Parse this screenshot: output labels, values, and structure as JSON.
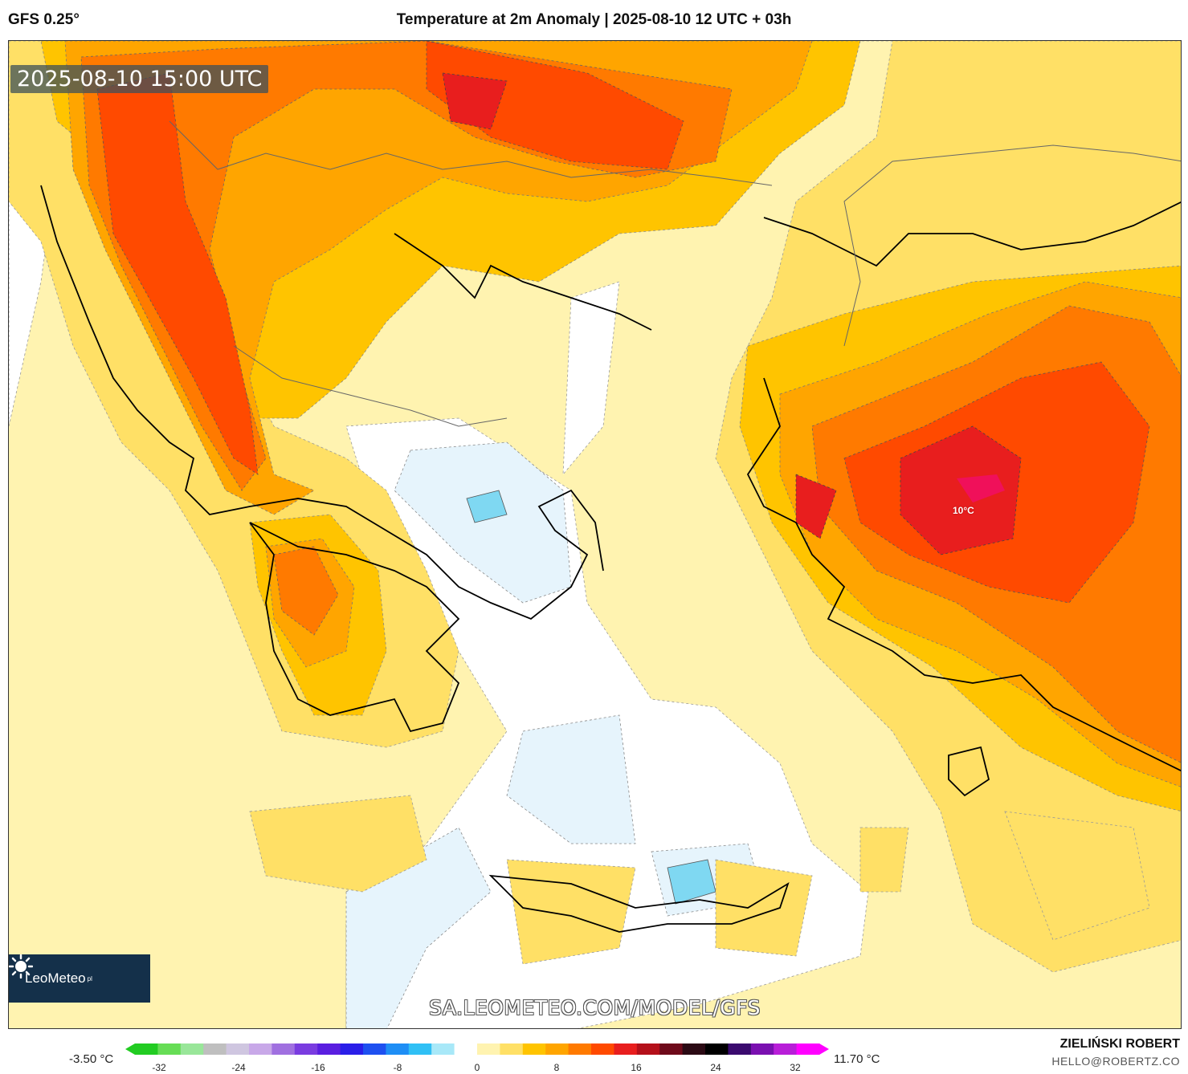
{
  "header": {
    "model": "GFS 0.25°",
    "title": "Temperature at 2m Anomaly | 2025-08-10 12 UTC + 03h"
  },
  "map": {
    "timestamp": "2025-08-10 15:00 UTC",
    "max_annotation": "10°C",
    "logo_text": "LeoMeteo",
    "logo_suffix": "pl",
    "watermark": "SA.LEOMETEO.COM/MODEL/GFS"
  },
  "legend": {
    "min_label": "-3.50 °C",
    "max_label": "11.70 °C",
    "ticks": [
      "-32",
      "-24",
      "-16",
      "-8",
      "0",
      "8",
      "16",
      "24",
      "32"
    ],
    "colors": [
      "#22cc22",
      "#66dd55",
      "#99e699",
      "#bfbfbf",
      "#cfc6e0",
      "#c8a8e8",
      "#a070e0",
      "#7a3ce0",
      "#5a1ee0",
      "#2a1ee8",
      "#1e50f0",
      "#1e8ef5",
      "#30c0f5",
      "#a8e8f8",
      "#ffffff",
      "#fff3b0",
      "#ffe066",
      "#ffc400",
      "#ffa500",
      "#ff7a00",
      "#ff4a00",
      "#e81e1e",
      "#b4101a",
      "#6e0a1a",
      "#2b0a14",
      "#000000",
      "#3a0a6e",
      "#7a10b0",
      "#b81ed8",
      "#ff00ff"
    ]
  },
  "footer": {
    "author": "ZIELIŃSKI ROBERT",
    "email": "HELLO@ROBERTZ.CO"
  },
  "colors": {
    "sea_pale": "#fff3b0",
    "yellow": "#ffe066",
    "gold": "#ffc400",
    "orange": "#ffa500",
    "dark_orange": "#ff7a00",
    "red_orange": "#ff4a00",
    "red": "#e81e1e",
    "magenta": "#f0105a",
    "pale_blue": "#e6f4fc",
    "light_blue": "#7fd8f2"
  }
}
